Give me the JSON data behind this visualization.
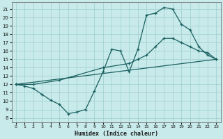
{
  "xlabel": "Humidex (Indice chaleur)",
  "bg_color": "#c8eaea",
  "grid_color": "#9ecece",
  "line_color": "#1a6060",
  "xlim": [
    -0.5,
    23.5
  ],
  "ylim": [
    7.5,
    21.8
  ],
  "xticks": [
    0,
    1,
    2,
    3,
    4,
    5,
    6,
    7,
    8,
    9,
    10,
    11,
    12,
    13,
    14,
    15,
    16,
    17,
    18,
    19,
    20,
    21,
    22,
    23
  ],
  "yticks": [
    8,
    9,
    10,
    11,
    12,
    13,
    14,
    15,
    16,
    17,
    18,
    19,
    20,
    21
  ],
  "line1_x": [
    0,
    1,
    2,
    3,
    4,
    5,
    6,
    7,
    8,
    9,
    10,
    11,
    12,
    13,
    14,
    15,
    16,
    17,
    18,
    19,
    20,
    21,
    22,
    23
  ],
  "line1_y": [
    12.0,
    11.8,
    11.5,
    10.8,
    10.1,
    9.6,
    8.5,
    8.7,
    9.0,
    11.2,
    13.5,
    16.2,
    16.0,
    13.5,
    16.2,
    20.3,
    20.5,
    21.2,
    21.0,
    19.2,
    18.5,
    16.5,
    15.5,
    15.0
  ],
  "line2_x": [
    0,
    23
  ],
  "line2_y": [
    12.0,
    15.0
  ],
  "line3_x": [
    0,
    2,
    5,
    10,
    13,
    14,
    15,
    16,
    17,
    18,
    19,
    20,
    21,
    22,
    23
  ],
  "line3_y": [
    12.0,
    12.0,
    12.5,
    14.0,
    14.5,
    15.0,
    15.5,
    16.5,
    17.5,
    17.5,
    17.0,
    16.5,
    16.0,
    15.8,
    15.0
  ]
}
